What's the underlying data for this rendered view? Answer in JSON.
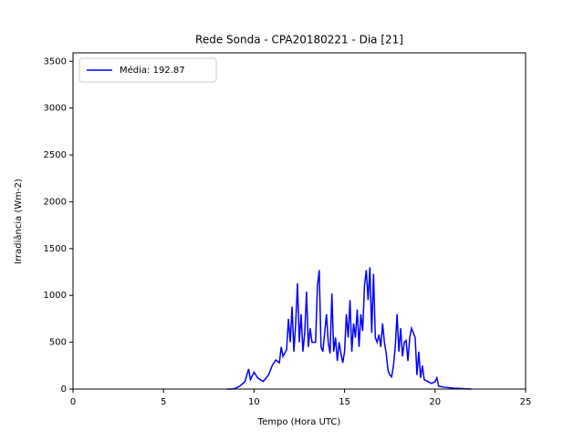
{
  "chart_data": {
    "type": "line",
    "title": "Rede Sonda - CPA20180221 - Dia [21]",
    "xlabel": "Tempo (Hora UTC)",
    "ylabel": "Irradiância (Wm-2)",
    "xlim": [
      0,
      25
    ],
    "xticks": [
      0,
      5,
      10,
      15,
      20,
      25
    ],
    "ylim": [
      0,
      3590
    ],
    "yticks": [
      0,
      500,
      1000,
      1500,
      2000,
      2500,
      3000,
      3500
    ],
    "legend": "upper left",
    "series": [
      {
        "name": "Média: 192.87",
        "color": "#0000ff",
        "x": [
          8.5,
          8.8,
          9.0,
          9.2,
          9.5,
          9.7,
          9.8,
          10.0,
          10.2,
          10.5,
          10.8,
          11.0,
          11.2,
          11.4,
          11.5,
          11.6,
          11.8,
          11.9,
          12.0,
          12.1,
          12.2,
          12.3,
          12.4,
          12.5,
          12.6,
          12.7,
          12.8,
          12.9,
          13.0,
          13.1,
          13.2,
          13.4,
          13.5,
          13.6,
          13.7,
          13.8,
          13.9,
          14.0,
          14.1,
          14.2,
          14.3,
          14.4,
          14.5,
          14.6,
          14.7,
          14.8,
          14.9,
          15.0,
          15.1,
          15.2,
          15.3,
          15.4,
          15.5,
          15.6,
          15.7,
          15.8,
          15.9,
          16.0,
          16.1,
          16.2,
          16.3,
          16.4,
          16.5,
          16.6,
          16.7,
          16.8,
          16.9,
          17.0,
          17.1,
          17.2,
          17.3,
          17.4,
          17.5,
          17.6,
          17.7,
          17.8,
          17.9,
          18.0,
          18.1,
          18.2,
          18.3,
          18.4,
          18.5,
          18.6,
          18.7,
          18.8,
          18.9,
          19.0,
          19.1,
          19.2,
          19.3,
          19.4,
          19.6,
          19.8,
          20.0,
          20.1,
          20.2,
          20.5,
          21.0,
          21.5,
          22.0
        ],
        "values": [
          0,
          0,
          10,
          30,
          80,
          215,
          100,
          180,
          120,
          80,
          150,
          250,
          310,
          280,
          450,
          350,
          420,
          750,
          500,
          880,
          400,
          700,
          1130,
          500,
          800,
          400,
          600,
          1040,
          450,
          650,
          500,
          500,
          1100,
          1270,
          450,
          400,
          600,
          800,
          500,
          380,
          1020,
          400,
          550,
          300,
          500,
          380,
          280,
          400,
          800,
          550,
          950,
          400,
          700,
          550,
          850,
          450,
          800,
          620,
          1100,
          1270,
          950,
          1300,
          600,
          1230,
          550,
          500,
          580,
          450,
          700,
          500,
          380,
          200,
          150,
          130,
          250,
          450,
          800,
          400,
          650,
          350,
          500,
          520,
          300,
          550,
          650,
          600,
          550,
          150,
          400,
          120,
          250,
          100,
          80,
          60,
          80,
          120,
          30,
          20,
          10,
          5,
          0
        ]
      }
    ]
  }
}
